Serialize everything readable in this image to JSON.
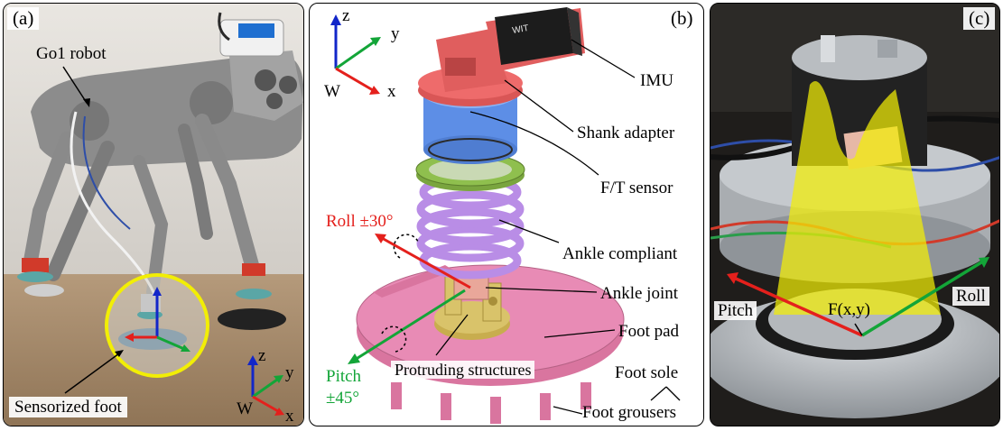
{
  "panel_a": {
    "tag": "(a)",
    "robot_label": "Go1 robot",
    "foot_label": "Sensorized foot",
    "frame": {
      "z": "z",
      "y": "y",
      "x": "x",
      "origin": "W"
    }
  },
  "panel_b": {
    "tag": "(b)",
    "frame": {
      "z": "z",
      "y": "y",
      "x": "x",
      "origin": "W"
    },
    "imu": "IMU",
    "shank_adapter": "Shank adapter",
    "ft_sensor": "F/T sensor",
    "ankle_compliant": "Ankle compliant",
    "ankle_joint": "Ankle joint",
    "foot_pad": "Foot pad",
    "foot_sole": "Foot sole",
    "foot_grousers": "Foot grousers",
    "protruding": "Protruding structures",
    "roll": "Roll ±30°",
    "pitch_line1": "Pitch",
    "pitch_line2": "±45°",
    "imu_brand": "WIT"
  },
  "panel_c": {
    "tag": "(c)",
    "pitch": "Pitch",
    "roll": "Roll",
    "force": "F(x,y)"
  },
  "colors": {
    "x_axis": "#e4201c",
    "y_axis": "#13a538",
    "z_axis": "#1226c9",
    "highlight": "#f2ee05",
    "shank": "#ee6b6b",
    "sensor": "#5d8ee6",
    "ring": "#8fbf4e",
    "spring": "#b98de6",
    "pad": "#e88bb5",
    "joint": "#d9c36a"
  }
}
